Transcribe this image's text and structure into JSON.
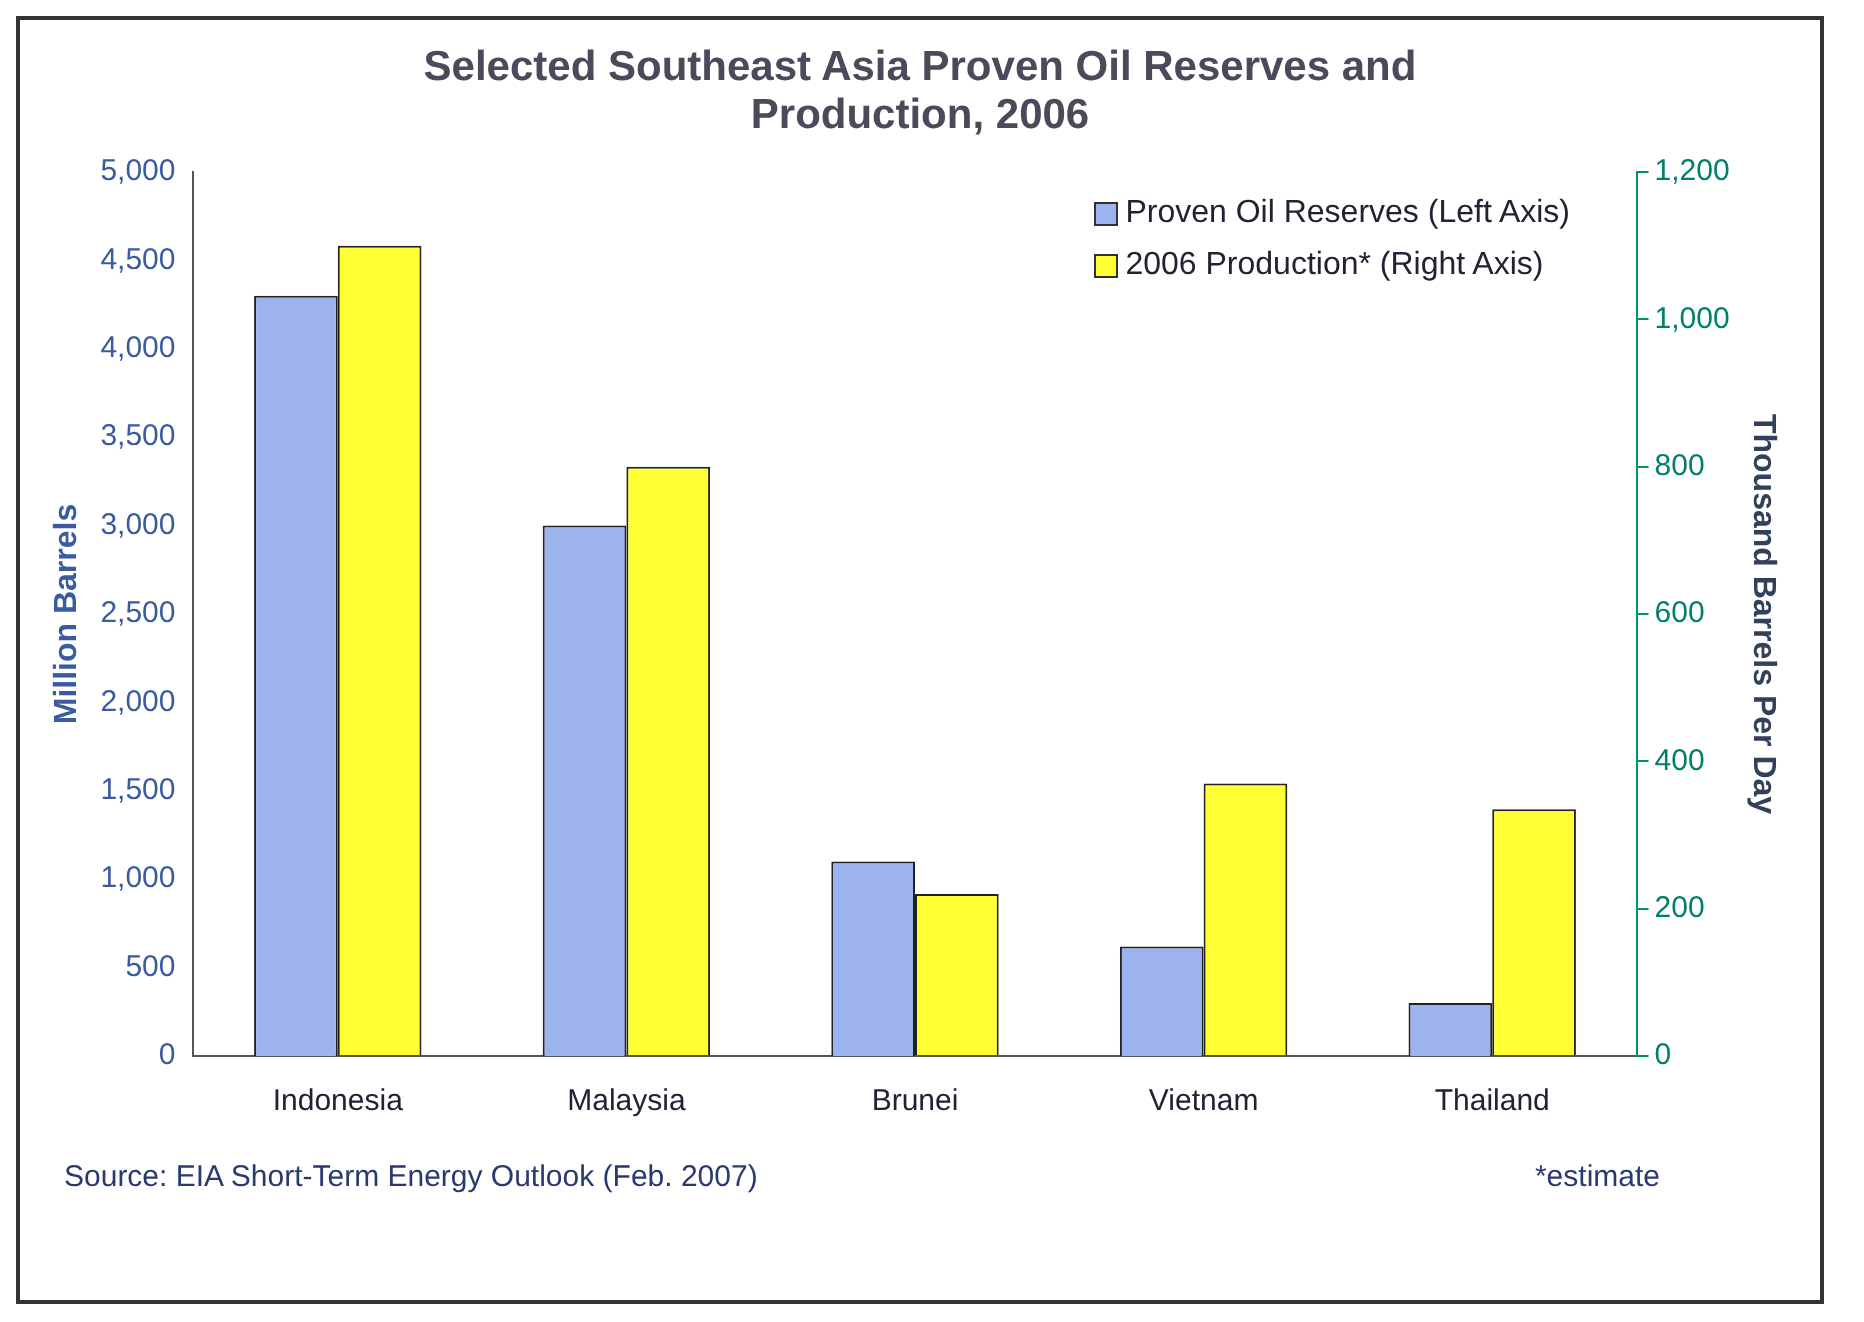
{
  "chart_data": {
    "type": "bar",
    "title": "Selected Southeast Asia Proven Oil Reserves and Production, 2006",
    "ylabel": "Million Barrels",
    "y2label": "Thousand Barrels Per Day",
    "categories": [
      "Indonesia",
      "Malaysia",
      "Brunei",
      "Vietnam",
      "Thailand"
    ],
    "series": [
      {
        "name": "Proven Oil Reserves (Left Axis)",
        "color": "#9db3ee",
        "values": [
          4300,
          3000,
          1100,
          620,
          300
        ]
      },
      {
        "name": "2006 Production* (Right Axis)",
        "color": "#ffff33",
        "values": [
          1100,
          800,
          220,
          370,
          335
        ],
        "axis": "y2"
      }
    ],
    "ylim": [
      0,
      5000
    ],
    "yticks": [
      {
        "value": 0,
        "label": "0"
      },
      {
        "value": 500,
        "label": "500"
      },
      {
        "value": 1000,
        "label": "1,000"
      },
      {
        "value": 1500,
        "label": "1,500"
      },
      {
        "value": 2000,
        "label": "2,000"
      },
      {
        "value": 2500,
        "label": "2,500"
      },
      {
        "value": 3000,
        "label": "3,000"
      },
      {
        "value": 3500,
        "label": "3,500"
      },
      {
        "value": 4000,
        "label": "4,000"
      },
      {
        "value": 4500,
        "label": "4,500"
      },
      {
        "value": 5000,
        "label": "5,000"
      }
    ],
    "y2lim": [
      0,
      1200
    ],
    "y2ticks": [
      {
        "value": 0,
        "label": "0"
      },
      {
        "value": 200,
        "label": "200"
      },
      {
        "value": 400,
        "label": "400"
      },
      {
        "value": 600,
        "label": "600"
      },
      {
        "value": 800,
        "label": "800"
      },
      {
        "value": 1000,
        "label": "1,000"
      },
      {
        "value": 1200,
        "label": "1,200"
      }
    ],
    "grid": false,
    "legend": "top right",
    "annotations": [
      "Source: EIA Short-Term Energy Outlook (Feb. 2007)",
      "*estimate"
    ]
  }
}
